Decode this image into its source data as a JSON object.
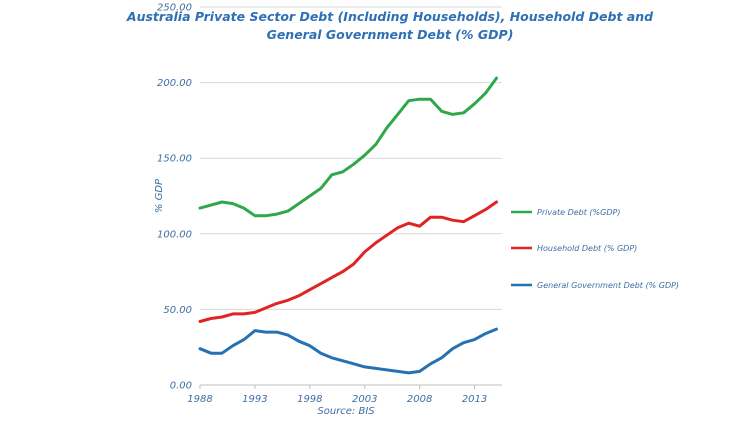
{
  "chart_data": {
    "type": "line",
    "title_line1": "Australia Private Sector Debt (Including Households), Household Debt and",
    "title_line2": "General Government Debt  (% GDP)",
    "ylabel": "% GDP",
    "source": "Source: BIS",
    "ylim": [
      0,
      250
    ],
    "y_ticks": [
      "0.00",
      "50.00",
      "100.00",
      "150.00",
      "200.00",
      "250.00"
    ],
    "x_ticks": [
      "1988",
      "1993",
      "1998",
      "2003",
      "2008",
      "2013"
    ],
    "x_range": [
      1988,
      2015.5
    ],
    "grid": "horizontal",
    "legend_position": "right",
    "x": [
      1988,
      1989,
      1990,
      1991,
      1992,
      1993,
      1994,
      1995,
      1996,
      1997,
      1998,
      1999,
      2000,
      2001,
      2002,
      2003,
      2004,
      2005,
      2006,
      2007,
      2008,
      2009,
      2010,
      2011,
      2012,
      2013,
      2014,
      2015
    ],
    "series": [
      {
        "name": "Private Debt (%GDP)",
        "color": "#2ea84a",
        "values": [
          117,
          119,
          121,
          120,
          117,
          112,
          112,
          113,
          115,
          120,
          125,
          130,
          139,
          141,
          146,
          152,
          159,
          170,
          179,
          188,
          189,
          189,
          181,
          179,
          180,
          186,
          193,
          203
        ]
      },
      {
        "name": "Household Debt (% GDP)",
        "color": "#e02424",
        "values": [
          42,
          44,
          45,
          47,
          47,
          48,
          51,
          54,
          56,
          59,
          63,
          67,
          71,
          75,
          80,
          88,
          94,
          99,
          104,
          107,
          105,
          111,
          111,
          109,
          108,
          112,
          116,
          121
        ]
      },
      {
        "name": "General Government Debt (% GDP)",
        "color": "#2471b3",
        "values": [
          24,
          21,
          21,
          26,
          30,
          36,
          35,
          35,
          33,
          29,
          26,
          21,
          18,
          16,
          14,
          12,
          11,
          10,
          9,
          8,
          9,
          14,
          18,
          24,
          28,
          30,
          34,
          37
        ]
      }
    ]
  }
}
